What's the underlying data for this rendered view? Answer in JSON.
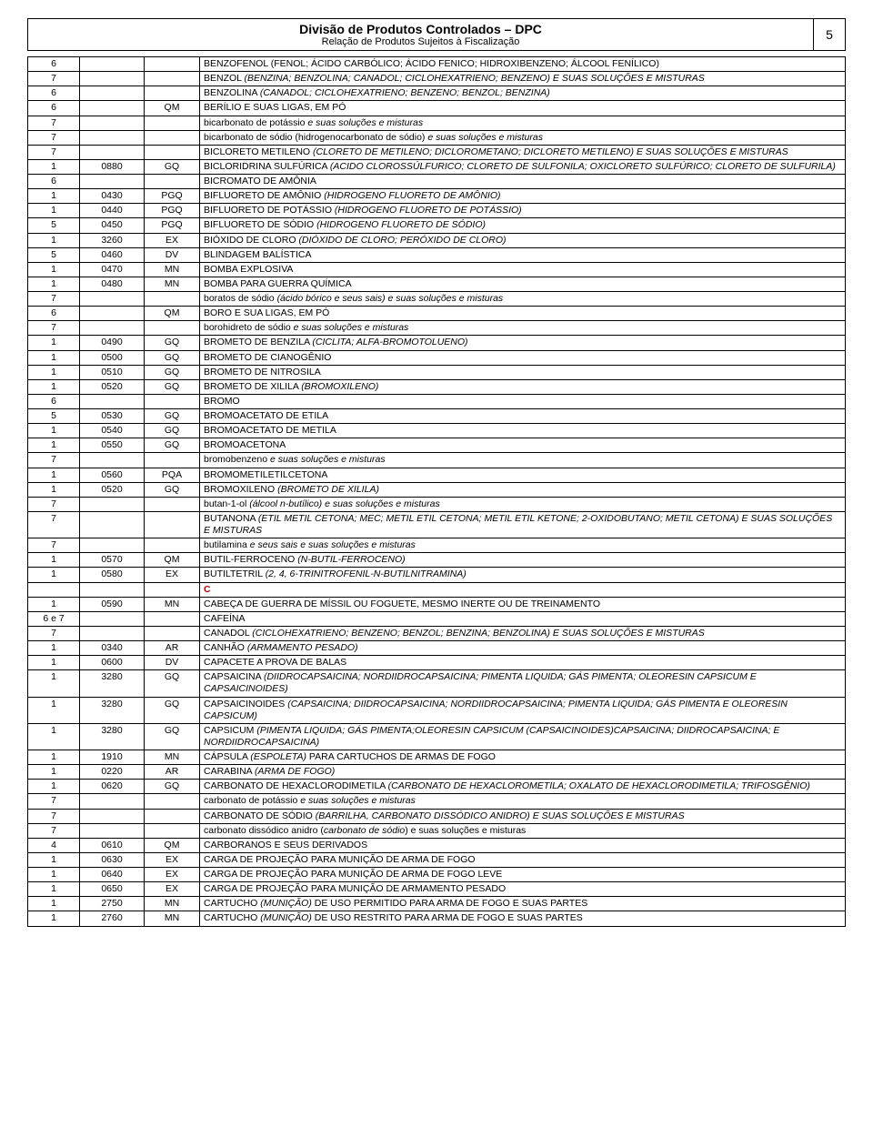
{
  "header": {
    "title": "Divisão de Produtos Controlados – DPC",
    "subtitle": "Relação de Produtos Sujeitos à Fiscalização",
    "page": "5"
  },
  "rows": [
    {
      "c1": "6",
      "c2": "",
      "c3": "",
      "desc": "BENZOFENOL (FENOL; ÁCIDO CARBÓLICO; ÁCIDO FENICO; HIDROXIBENZENO; ÁLCOOL FENÍLICO)",
      "style": "plain"
    },
    {
      "c1": "7",
      "c2": "",
      "c3": "",
      "desc": "BENZOL <i>(BENZINA; BENZOLINA; CANADOL; CICLOHEXATRIENO; BENZENO) E SUAS SOLUÇÕES E MISTURAS</i>",
      "style": "html"
    },
    {
      "c1": "6",
      "c2": "",
      "c3": "",
      "desc": "BENZOLINA <i>(CANADOL; CICLOHEXATRIENO; BENZENO; BENZOL; BENZINA)</i>",
      "style": "html"
    },
    {
      "c1": "6",
      "c2": "",
      "c3": "QM",
      "desc": "BERÍLIO E SUAS LIGAS, EM PÓ",
      "style": "plain"
    },
    {
      "c1": "7",
      "c2": "",
      "c3": "",
      "desc": "bicarbonato de potássio <i>e suas soluções e misturas</i>",
      "style": "html"
    },
    {
      "c1": "7",
      "c2": "",
      "c3": "",
      "desc": "bicarbonato de sódio (hidrogenocarbonato de sódio) <i>e suas soluções e misturas</i>",
      "style": "html"
    },
    {
      "c1": "7",
      "c2": "",
      "c3": "",
      "desc": "BICLORETO METILENO <i>(CLORETO DE METILENO; DICLOROMETANO; DICLORETO METILENO) E SUAS SOLUÇÕES E MISTURAS</i>",
      "style": "html"
    },
    {
      "c1": "1",
      "c2": "0880",
      "c3": "GQ",
      "desc": "BICLORIDRINA SULFÚRICA <i>(ACIDO CLOROSSÚLFURICO; CLORETO DE SULFONILA; OXICLORETO SULFÚRICO; CLORETO DE SULFURILA)</i>",
      "style": "html"
    },
    {
      "c1": "6",
      "c2": "",
      "c3": "",
      "desc": "BICROMATO DE AMÔNIA",
      "style": "plain"
    },
    {
      "c1": "1",
      "c2": "0430",
      "c3": "PGQ",
      "desc": "BIFLUORETO DE AMÔNIO <i>(HIDROGENO FLUORETO DE AMÔNIO)</i>",
      "style": "html"
    },
    {
      "c1": "1",
      "c2": "0440",
      "c3": "PGQ",
      "desc": "BIFLUORETO DE POTÁSSIO <i>(HIDROGENO FLUORETO DE POTÁSSIO)</i>",
      "style": "html"
    },
    {
      "c1": "5",
      "c2": "0450",
      "c3": "PGQ",
      "desc": "BIFLUORETO DE SÓDIO <i>(HIDROGENO FLUORETO DE SÓDIO)</i>",
      "style": "html"
    },
    {
      "c1": "1",
      "c2": "3260",
      "c3": "EX",
      "desc": "BIÓXIDO DE CLORO <i>(DIÓXIDO DE CLORO; PERÓXIDO DE CLORO)</i>",
      "style": "html"
    },
    {
      "c1": "5",
      "c2": "0460",
      "c3": "DV",
      "desc": "BLINDAGEM BALÍSTICA",
      "style": "plain"
    },
    {
      "c1": "1",
      "c2": "0470",
      "c3": "MN",
      "desc": "BOMBA EXPLOSIVA",
      "style": "plain"
    },
    {
      "c1": "1",
      "c2": "0480",
      "c3": "MN",
      "desc": "BOMBA PARA GUERRA QUÍMICA",
      "style": "plain"
    },
    {
      "c1": "7",
      "c2": "",
      "c3": "",
      "desc": "boratos de sódio <i>(ácido bórico e seus sais) e suas soluções e misturas</i>",
      "style": "html"
    },
    {
      "c1": "6",
      "c2": "",
      "c3": "QM",
      "desc": "BORO E SUA LIGAS, EM PÓ",
      "style": "plain"
    },
    {
      "c1": "7",
      "c2": "",
      "c3": "",
      "desc": "borohidreto de sódio <i>e suas soluções e misturas</i>",
      "style": "html"
    },
    {
      "c1": "1",
      "c2": "0490",
      "c3": "GQ",
      "desc": "BROMETO DE BENZILA <i>(CICLITA; ALFA-BROMOTOLUENO)</i>",
      "style": "html"
    },
    {
      "c1": "1",
      "c2": "0500",
      "c3": "GQ",
      "desc": "BROMETO DE CIANOGÊNIO",
      "style": "plain"
    },
    {
      "c1": "1",
      "c2": "0510",
      "c3": "GQ",
      "desc": "BROMETO DE NITROSILA",
      "style": "plain"
    },
    {
      "c1": "1",
      "c2": "0520",
      "c3": "GQ",
      "desc": "BROMETO DE XILILA <i>(BROMOXILENO)</i>",
      "style": "html"
    },
    {
      "c1": "6",
      "c2": "",
      "c3": "",
      "desc": "BROMO",
      "style": "plain"
    },
    {
      "c1": "5",
      "c2": "0530",
      "c3": "GQ",
      "desc": "BROMOACETATO DE ETILA",
      "style": "plain"
    },
    {
      "c1": "1",
      "c2": "0540",
      "c3": "GQ",
      "desc": "BROMOACETATO DE METILA",
      "style": "plain"
    },
    {
      "c1": "1",
      "c2": "0550",
      "c3": "GQ",
      "desc": "BROMOACETONA",
      "style": "plain"
    },
    {
      "c1": "7",
      "c2": "",
      "c3": "",
      "desc": "bromobenzeno <i>e suas soluções e misturas</i>",
      "style": "html"
    },
    {
      "c1": "1",
      "c2": "0560",
      "c3": "PQA",
      "desc": "BROMOMETILETILCETONA",
      "style": "plain"
    },
    {
      "c1": "1",
      "c2": "0520",
      "c3": "GQ",
      "desc": "BROMOXILENO <i>(BROMETO DE XILILA)</i>",
      "style": "html"
    },
    {
      "c1": "7",
      "c2": "",
      "c3": "",
      "desc": "butan-1-ol <i>(álcool n-butílico) e suas soluções e misturas</i>",
      "style": "html"
    },
    {
      "c1": "7",
      "c2": "",
      "c3": "",
      "desc": "BUTANONA <i>(ETIL METIL CETONA; MEC; METIL ETIL CETONA; METIL ETIL KETONE; 2-OXIDOBUTANO; METIL CETONA) E SUAS SOLUÇÕES E MISTURAS</i>",
      "style": "html"
    },
    {
      "c1": "7",
      "c2": "",
      "c3": "",
      "desc": "butilamina <i>e seus sais e suas soluções e misturas</i>",
      "style": "html"
    },
    {
      "c1": "1",
      "c2": "0570",
      "c3": "QM",
      "desc": "BUTIL-FERROCENO <i>(N-BUTIL-FERROCENO)</i>",
      "style": "html"
    },
    {
      "c1": "1",
      "c2": "0580",
      "c3": "EX",
      "desc": "BUTILTETRIL <i>(2, 4, 6-TRINITROFENIL-N-BUTILNITRAMINA)</i>",
      "style": "html"
    },
    {
      "c1": "",
      "c2": "",
      "c3": "",
      "desc": "<span class=\"section-letter\">C</span>",
      "style": "html"
    },
    {
      "c1": "1",
      "c2": "0590",
      "c3": "MN",
      "desc": "CABEÇA DE GUERRA DE MÍSSIL OU FOGUETE, MESMO INERTE OU DE TREINAMENTO",
      "style": "plain"
    },
    {
      "c1": "6 e 7",
      "c2": "",
      "c3": "",
      "desc": "CAFEÍNA",
      "style": "plain"
    },
    {
      "c1": "7",
      "c2": "",
      "c3": "",
      "desc": "CANADOL <i>(CICLOHEXATRIENO; BENZENO; BENZOL; BENZINA; BENZOLINA) E SUAS SOLUÇÕES E MISTURAS</i>",
      "style": "html"
    },
    {
      "c1": "1",
      "c2": "0340",
      "c3": "AR",
      "desc": "CANHÃO <i>(ARMAMENTO PESADO)</i>",
      "style": "html"
    },
    {
      "c1": "1",
      "c2": "0600",
      "c3": "DV",
      "desc": "CAPACETE A PROVA DE BALAS",
      "style": "plain"
    },
    {
      "c1": "1",
      "c2": "3280",
      "c3": "GQ",
      "desc": "CAPSAICINA <i>(DIIDROCAPSAICINA; NORDIIDROCAPSAICINA; PIMENTA LIQUIDA; GÁS PIMENTA; OLEORESIN CAPSICUM E CAPSAICINOIDES)</i>",
      "style": "html"
    },
    {
      "c1": "1",
      "c2": "3280",
      "c3": "GQ",
      "desc": "CAPSAICINOIDES <i>(CAPSAICINA; DIIDROCAPSAICINA; NORDIIDROCAPSAICINA; PIMENTA LIQUIDA; GÁS PIMENTA E OLEORESIN CAPSICUM)</i>",
      "style": "html"
    },
    {
      "c1": "1",
      "c2": "3280",
      "c3": "GQ",
      "desc": "CAPSICUM <i>(PIMENTA LIQUIDA; GÁS PIMENTA;OLEORESIN CAPSICUM (CAPSAICINOIDES)CAPSAICINA; DIIDROCAPSAICINA; E NORDIIDROCAPSAICINA)</i>",
      "style": "html"
    },
    {
      "c1": "1",
      "c2": "1910",
      "c3": "MN",
      "desc": "CÁPSULA <i>(ESPOLETA)</i> PARA CARTUCHOS DE ARMAS DE FOGO",
      "style": "html"
    },
    {
      "c1": "1",
      "c2": "0220",
      "c3": "AR",
      "desc": "CARABINA <i>(ARMA DE FOGO)</i>",
      "style": "html"
    },
    {
      "c1": "1",
      "c2": "0620",
      "c3": "GQ",
      "desc": "CARBONATO DE HEXACLORODIMETILA <i>(CARBONATO DE HEXACLOROMETILA; OXALATO DE HEXACLORODIMETILA; TRIFOSGÊNIO)</i>",
      "style": "html"
    },
    {
      "c1": "7",
      "c2": "",
      "c3": "",
      "desc": "carbonato de potássio <i>e suas soluções e misturas</i>",
      "style": "html"
    },
    {
      "c1": "7",
      "c2": "",
      "c3": "",
      "desc": "CARBONATO DE SÓDIO <i>(BARRILHA, CARBONATO DISSÓDICO ANIDRO) E SUAS SOLUÇÕES E MISTURAS</i>",
      "style": "html"
    },
    {
      "c1": "7",
      "c2": "",
      "c3": "",
      "desc": "carbonato dissódico anidro (<i>carbonato de sódio</i>) e suas soluções e misturas",
      "style": "html"
    },
    {
      "c1": "4",
      "c2": "0610",
      "c3": "QM",
      "desc": "CARBORANOS E SEUS DERIVADOS",
      "style": "plain"
    },
    {
      "c1": "1",
      "c2": "0630",
      "c3": "EX",
      "desc": "CARGA DE PROJEÇÃO PARA MUNIÇÃO DE ARMA DE FOGO",
      "style": "plain"
    },
    {
      "c1": "1",
      "c2": "0640",
      "c3": "EX",
      "desc": "CARGA DE PROJEÇÃO PARA MUNIÇÃO DE ARMA DE FOGO LEVE",
      "style": "plain"
    },
    {
      "c1": "1",
      "c2": "0650",
      "c3": "EX",
      "desc": "CARGA DE PROJEÇÃO PARA MUNIÇÃO DE ARMAMENTO PESADO",
      "style": "plain"
    },
    {
      "c1": "1",
      "c2": "2750",
      "c3": "MN",
      "desc": "CARTUCHO <i>(MUNIÇÃO)</i> DE USO PERMITIDO PARA ARMA DE FOGO E SUAS PARTES",
      "style": "html"
    },
    {
      "c1": "1",
      "c2": "2760",
      "c3": "MN",
      "desc": "CARTUCHO <i>(MUNIÇÃO)</i> DE USO RESTRITO PARA ARMA DE FOGO E SUAS PARTES",
      "style": "html"
    }
  ]
}
